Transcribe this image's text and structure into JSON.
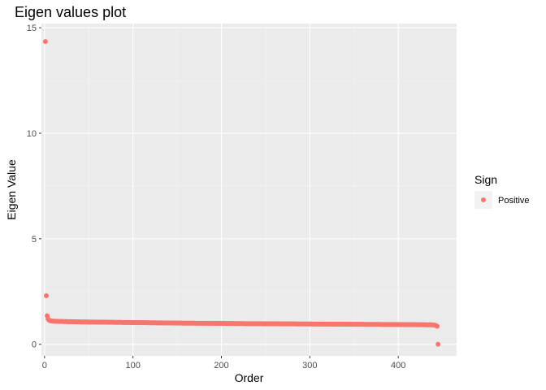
{
  "chart_data": {
    "type": "scatter",
    "title": "Eigen values plot",
    "xlabel": "Order",
    "ylabel": "Eigen Value",
    "xlim": [
      -3.5,
      466
    ],
    "ylim": [
      -0.55,
      15.2
    ],
    "x_ticks": [
      0,
      100,
      200,
      300,
      400
    ],
    "y_ticks": [
      0,
      5,
      10,
      15
    ],
    "x_tick_labels": [
      "0",
      "100",
      "200",
      "300",
      "400"
    ],
    "y_tick_labels": [
      "0",
      "5",
      "10",
      "15"
    ],
    "grid": true,
    "legend": {
      "title": "Sign",
      "position": "right",
      "entries": [
        {
          "label": "Positive",
          "color": "#F8766D"
        }
      ]
    },
    "series": [
      {
        "name": "Positive",
        "color": "#F8766D",
        "points": [
          [
            1,
            14.35
          ],
          [
            2,
            2.3
          ],
          [
            3,
            1.35
          ],
          [
            4,
            1.2
          ],
          [
            5,
            1.15
          ],
          [
            6,
            1.12
          ],
          [
            7,
            1.11
          ],
          [
            8,
            1.105
          ],
          [
            9,
            1.1
          ],
          [
            10,
            1.095
          ],
          [
            12,
            1.09
          ],
          [
            15,
            1.085
          ],
          [
            20,
            1.08
          ],
          [
            30,
            1.07
          ],
          [
            40,
            1.06
          ],
          [
            50,
            1.055
          ],
          [
            60,
            1.05
          ],
          [
            70,
            1.045
          ],
          [
            80,
            1.04
          ],
          [
            90,
            1.035
          ],
          [
            100,
            1.03
          ],
          [
            120,
            1.02
          ],
          [
            140,
            1.01
          ],
          [
            160,
            1.0
          ],
          [
            180,
            0.995
          ],
          [
            200,
            0.99
          ],
          [
            220,
            0.98
          ],
          [
            240,
            0.975
          ],
          [
            260,
            0.97
          ],
          [
            280,
            0.965
          ],
          [
            300,
            0.96
          ],
          [
            320,
            0.955
          ],
          [
            340,
            0.95
          ],
          [
            360,
            0.945
          ],
          [
            380,
            0.94
          ],
          [
            400,
            0.935
          ],
          [
            420,
            0.93
          ],
          [
            430,
            0.925
          ],
          [
            438,
            0.92
          ],
          [
            440,
            0.915
          ],
          [
            441,
            0.91
          ],
          [
            442,
            0.9
          ],
          [
            443,
            0.88
          ],
          [
            444,
            0.85
          ],
          [
            445,
            0.0
          ]
        ]
      }
    ]
  }
}
